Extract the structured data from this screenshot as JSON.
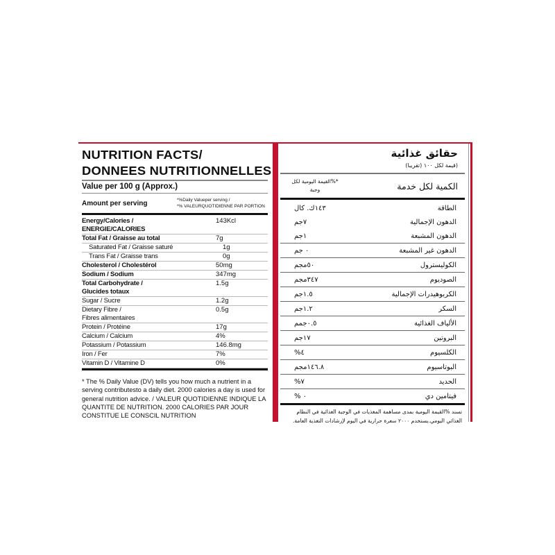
{
  "colors": {
    "accent": "#c8102e"
  },
  "left": {
    "title_line1": "NUTRITION FACTS/",
    "title_line2": "DONNEES NUTRITIONNELLES",
    "value_per": "Value per 100 g (Approx.)",
    "amount_label": "Amount per serving",
    "dv_line1": "*%Daily Valueper serving /",
    "dv_line2": "*% VALEURQUOTIDIENNE PAR PORTION",
    "rows": [
      {
        "name": "Energy/Calories /\nENERGIE/CALORIES",
        "value": "143Kcl",
        "style": "bold"
      },
      {
        "name": "Total Fat / Graisse au total",
        "value": "7g",
        "style": "bold"
      },
      {
        "name": "Saturated Fat / Graisse saturé",
        "value": "1g",
        "style": "ind"
      },
      {
        "name": "Trans Fat / Graisse trans",
        "value": "0g",
        "style": "ind"
      },
      {
        "name": "Cholesterol / Cholestérol",
        "value": "50mg",
        "style": "bold"
      },
      {
        "name": "Sodium / Sodium",
        "value": "347mg",
        "style": "bold"
      },
      {
        "name": "Total Carbohydrate /\nGlucides totaux",
        "value": "1.5g",
        "style": "bold"
      },
      {
        "name": "Sugar / Sucre",
        "value": "1.2g",
        "style": ""
      },
      {
        "name": "Dietary Fibre /\nFibres alimentaires",
        "value": "0.5g",
        "style": ""
      },
      {
        "name": "Protein / Protéine",
        "value": "17g",
        "style": ""
      },
      {
        "name": "Calcium / Calcium",
        "value": "4%",
        "style": ""
      },
      {
        "name": "Potassium / Potassium",
        "value": "146.8mg",
        "style": ""
      },
      {
        "name": "Iron / Fer",
        "value": "7%",
        "style": ""
      },
      {
        "name": "Vitamin D / Vitamine D",
        "value": "0%",
        "style": ""
      }
    ],
    "footnote": "* The % Daily Value (DV) tells you how much a nutrient in a serving contributesto a daily diet. 2000 calories a day is used for general nutrition advice. / VALEUR QUOTIDIENNE INDIQUE LA QUANTITE DE NUTRITION. 2000 CALORIES PAR JOUR CONSTITUE LE CONSCIL NUTRITION"
  },
  "right": {
    "title": "حقائق غذائية",
    "subtitle": "(قيمة لكل ١٠٠  (تقريبا)",
    "amount_label": "الكمية لكل خدمة",
    "dv_label": "*%القيمة اليومية لكل وجبة",
    "rows": [
      {
        "name": "الطاقة",
        "value": "١٤٣ك. كال"
      },
      {
        "name": "الدهون الإجمالية",
        "value": "٧جم"
      },
      {
        "name": "الدهون المشبعة",
        "value": "١جم"
      },
      {
        "name": "الدهون غير المشبعة",
        "value": "٠ جم"
      },
      {
        "name": "الكوليسترول",
        "value": "٥٠مجم"
      },
      {
        "name": "الصوديوم",
        "value": "٣٤٧مجم"
      },
      {
        "name": "الكربوهيدرات الإجمالية",
        "value": "١.٥جم"
      },
      {
        "name": "السكر",
        "value": "١.٢جم"
      },
      {
        "name": "الألياف الغذائية",
        "value": "٠.٥جمم"
      },
      {
        "name": "البروتين",
        "value": "١٧جم"
      },
      {
        "name": "الكلسيوم",
        "value": "٤%"
      },
      {
        "name": "البوتاسيوم",
        "value": "١٤٦.٨مجم"
      },
      {
        "name": "الحديد",
        "value": "٧%"
      },
      {
        "name": "فيتامين دي",
        "value": "٠ %"
      }
    ],
    "footnote": "تسند %القيمة اليومية بمدى مساهمة المغذيات في الوجبة الغذائية في النظام الغذائي اليومي.يستخدم ٢٠٠٠ سعرة حرارية في اليوم لإرشادات التغذية العامة."
  }
}
